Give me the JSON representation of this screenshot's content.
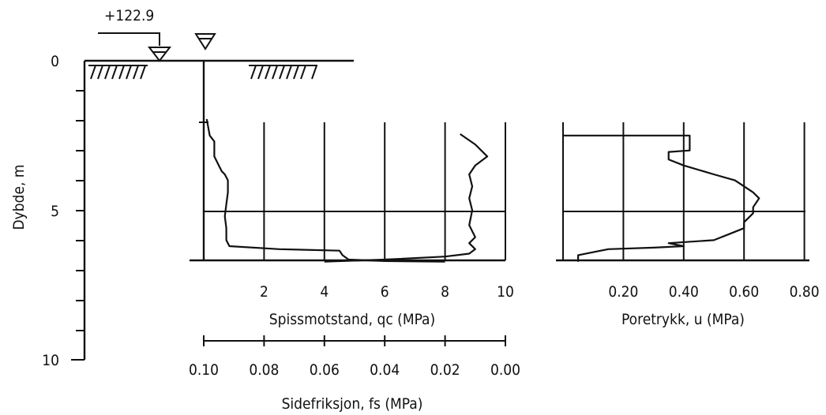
{
  "chart_data": [
    {
      "type": "line",
      "depth_axis": {
        "label": "Dybde, m",
        "ticks": [
          "0",
          "5",
          "10"
        ],
        "ylim": [
          0,
          10
        ],
        "inverted": true
      },
      "elevation_marker": "+122.9"
    },
    {
      "type": "line",
      "xlabel": "Spissmotstand, qc (MPa)",
      "xticks": [
        "2",
        "4",
        "6",
        "8",
        "10"
      ],
      "xlim": [
        0,
        10
      ],
      "secondary_xlabel": "Sidefriksjon, fs (MPa)",
      "secondary_xticks": [
        "0.10",
        "0.08",
        "0.06",
        "0.04",
        "0.02",
        "0.00"
      ],
      "secondary_xlim": [
        0.1,
        0.0
      ],
      "grid": true,
      "series": [
        {
          "values": [
            [
              0.1,
              1.95
            ],
            [
              0.2,
              2.5
            ],
            [
              0.35,
              2.7
            ],
            [
              0.35,
              3.2
            ],
            [
              0.5,
              3.5
            ],
            [
              0.6,
              3.7
            ],
            [
              0.7,
              3.8
            ],
            [
              0.8,
              4.0
            ],
            [
              0.8,
              4.4
            ],
            [
              0.75,
              4.8
            ],
            [
              0.7,
              5.2
            ],
            [
              0.75,
              5.6
            ],
            [
              0.75,
              6.0
            ],
            [
              0.85,
              6.2
            ],
            [
              2.5,
              6.3
            ],
            [
              4.5,
              6.35
            ],
            [
              4.6,
              6.5
            ],
            [
              4.8,
              6.65
            ],
            [
              6.0,
              6.7
            ],
            [
              8.0,
              6.72
            ]
          ]
        },
        {
          "values": [
            [
              0.015,
              2.45
            ],
            [
              0.01,
              2.8
            ],
            [
              0.006,
              3.2
            ],
            [
              0.01,
              3.5
            ],
            [
              0.012,
              3.8
            ],
            [
              0.011,
              4.2
            ],
            [
              0.012,
              4.6
            ],
            [
              0.011,
              5.0
            ],
            [
              0.012,
              5.5
            ],
            [
              0.01,
              5.9
            ],
            [
              0.012,
              6.1
            ],
            [
              0.01,
              6.3
            ],
            [
              0.012,
              6.45
            ],
            [
              0.02,
              6.55
            ],
            [
              0.04,
              6.65
            ],
            [
              0.06,
              6.72
            ]
          ]
        }
      ]
    },
    {
      "type": "line",
      "xlabel": "Poretrykk, u (MPa)",
      "xticks": [
        "0.20",
        "0.40",
        "0.60",
        "0.80"
      ],
      "xlim": [
        0,
        0.9
      ],
      "grid": true,
      "series": [
        {
          "values": [
            [
              0.42,
              2.5
            ],
            [
              0.42,
              3.0
            ],
            [
              0.35,
              3.05
            ],
            [
              0.35,
              3.3
            ],
            [
              0.4,
              3.5
            ],
            [
              0.5,
              3.8
            ],
            [
              0.57,
              4.0
            ],
            [
              0.6,
              4.2
            ],
            [
              0.63,
              4.4
            ],
            [
              0.65,
              4.6
            ],
            [
              0.63,
              4.9
            ],
            [
              0.63,
              5.1
            ],
            [
              0.6,
              5.4
            ],
            [
              0.6,
              5.6
            ],
            [
              0.55,
              5.8
            ],
            [
              0.5,
              6.0
            ],
            [
              0.35,
              6.1
            ],
            [
              0.4,
              6.2
            ],
            [
              0.3,
              6.25
            ],
            [
              0.15,
              6.3
            ],
            [
              0.05,
              6.5
            ],
            [
              0.05,
              6.7
            ]
          ]
        }
      ]
    }
  ]
}
